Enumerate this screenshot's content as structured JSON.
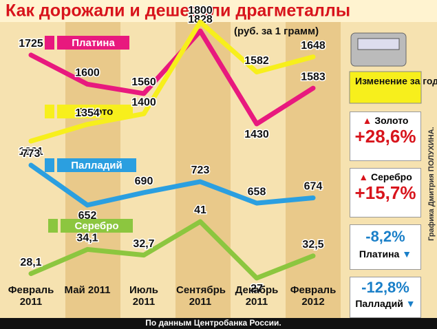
{
  "chart_data": {
    "type": "line",
    "title": "Как дорожали и дешевели драгметаллы",
    "subtitle": "(руб. за 1 грамм)",
    "categories": [
      "Февраль 2011",
      "Май 2011",
      "Июль 2011",
      "Сентябрь 2011",
      "Декабрь 2011",
      "Февраль 2012"
    ],
    "series": [
      {
        "name": "Платина",
        "color": "#e8197e",
        "values": [
          1725,
          1600,
          1560,
          1828,
          1430,
          1583
        ]
      },
      {
        "name": "Золото",
        "color": "#f7ef1c",
        "values": [
          1281,
          1354,
          1400,
          1800,
          1582,
          1648
        ]
      },
      {
        "name": "Палладий",
        "color": "#2b9fe0",
        "values": [
          773,
          652,
          690,
          723,
          658,
          674
        ]
      },
      {
        "name": "Серебро",
        "color": "#8cc63f",
        "values": [
          28.1,
          34.1,
          32.7,
          41,
          27,
          32.5
        ],
        "value_labels": [
          "28,1",
          "34,1",
          "32,7",
          "41",
          "27",
          "32,5"
        ]
      }
    ],
    "source": "По данным Центробанка России.",
    "credit": "Графика Дмитрия ПОЛУХИНА."
  },
  "panel": {
    "title": "Изменение за год",
    "items": [
      {
        "name": "Золото",
        "value": "+28,6%"
      },
      {
        "name": "Серебро",
        "value": "+15,7%"
      },
      {
        "name": "Платина",
        "value": "-8,2%"
      },
      {
        "name": "Палладий",
        "value": "-12,8%"
      }
    ]
  }
}
